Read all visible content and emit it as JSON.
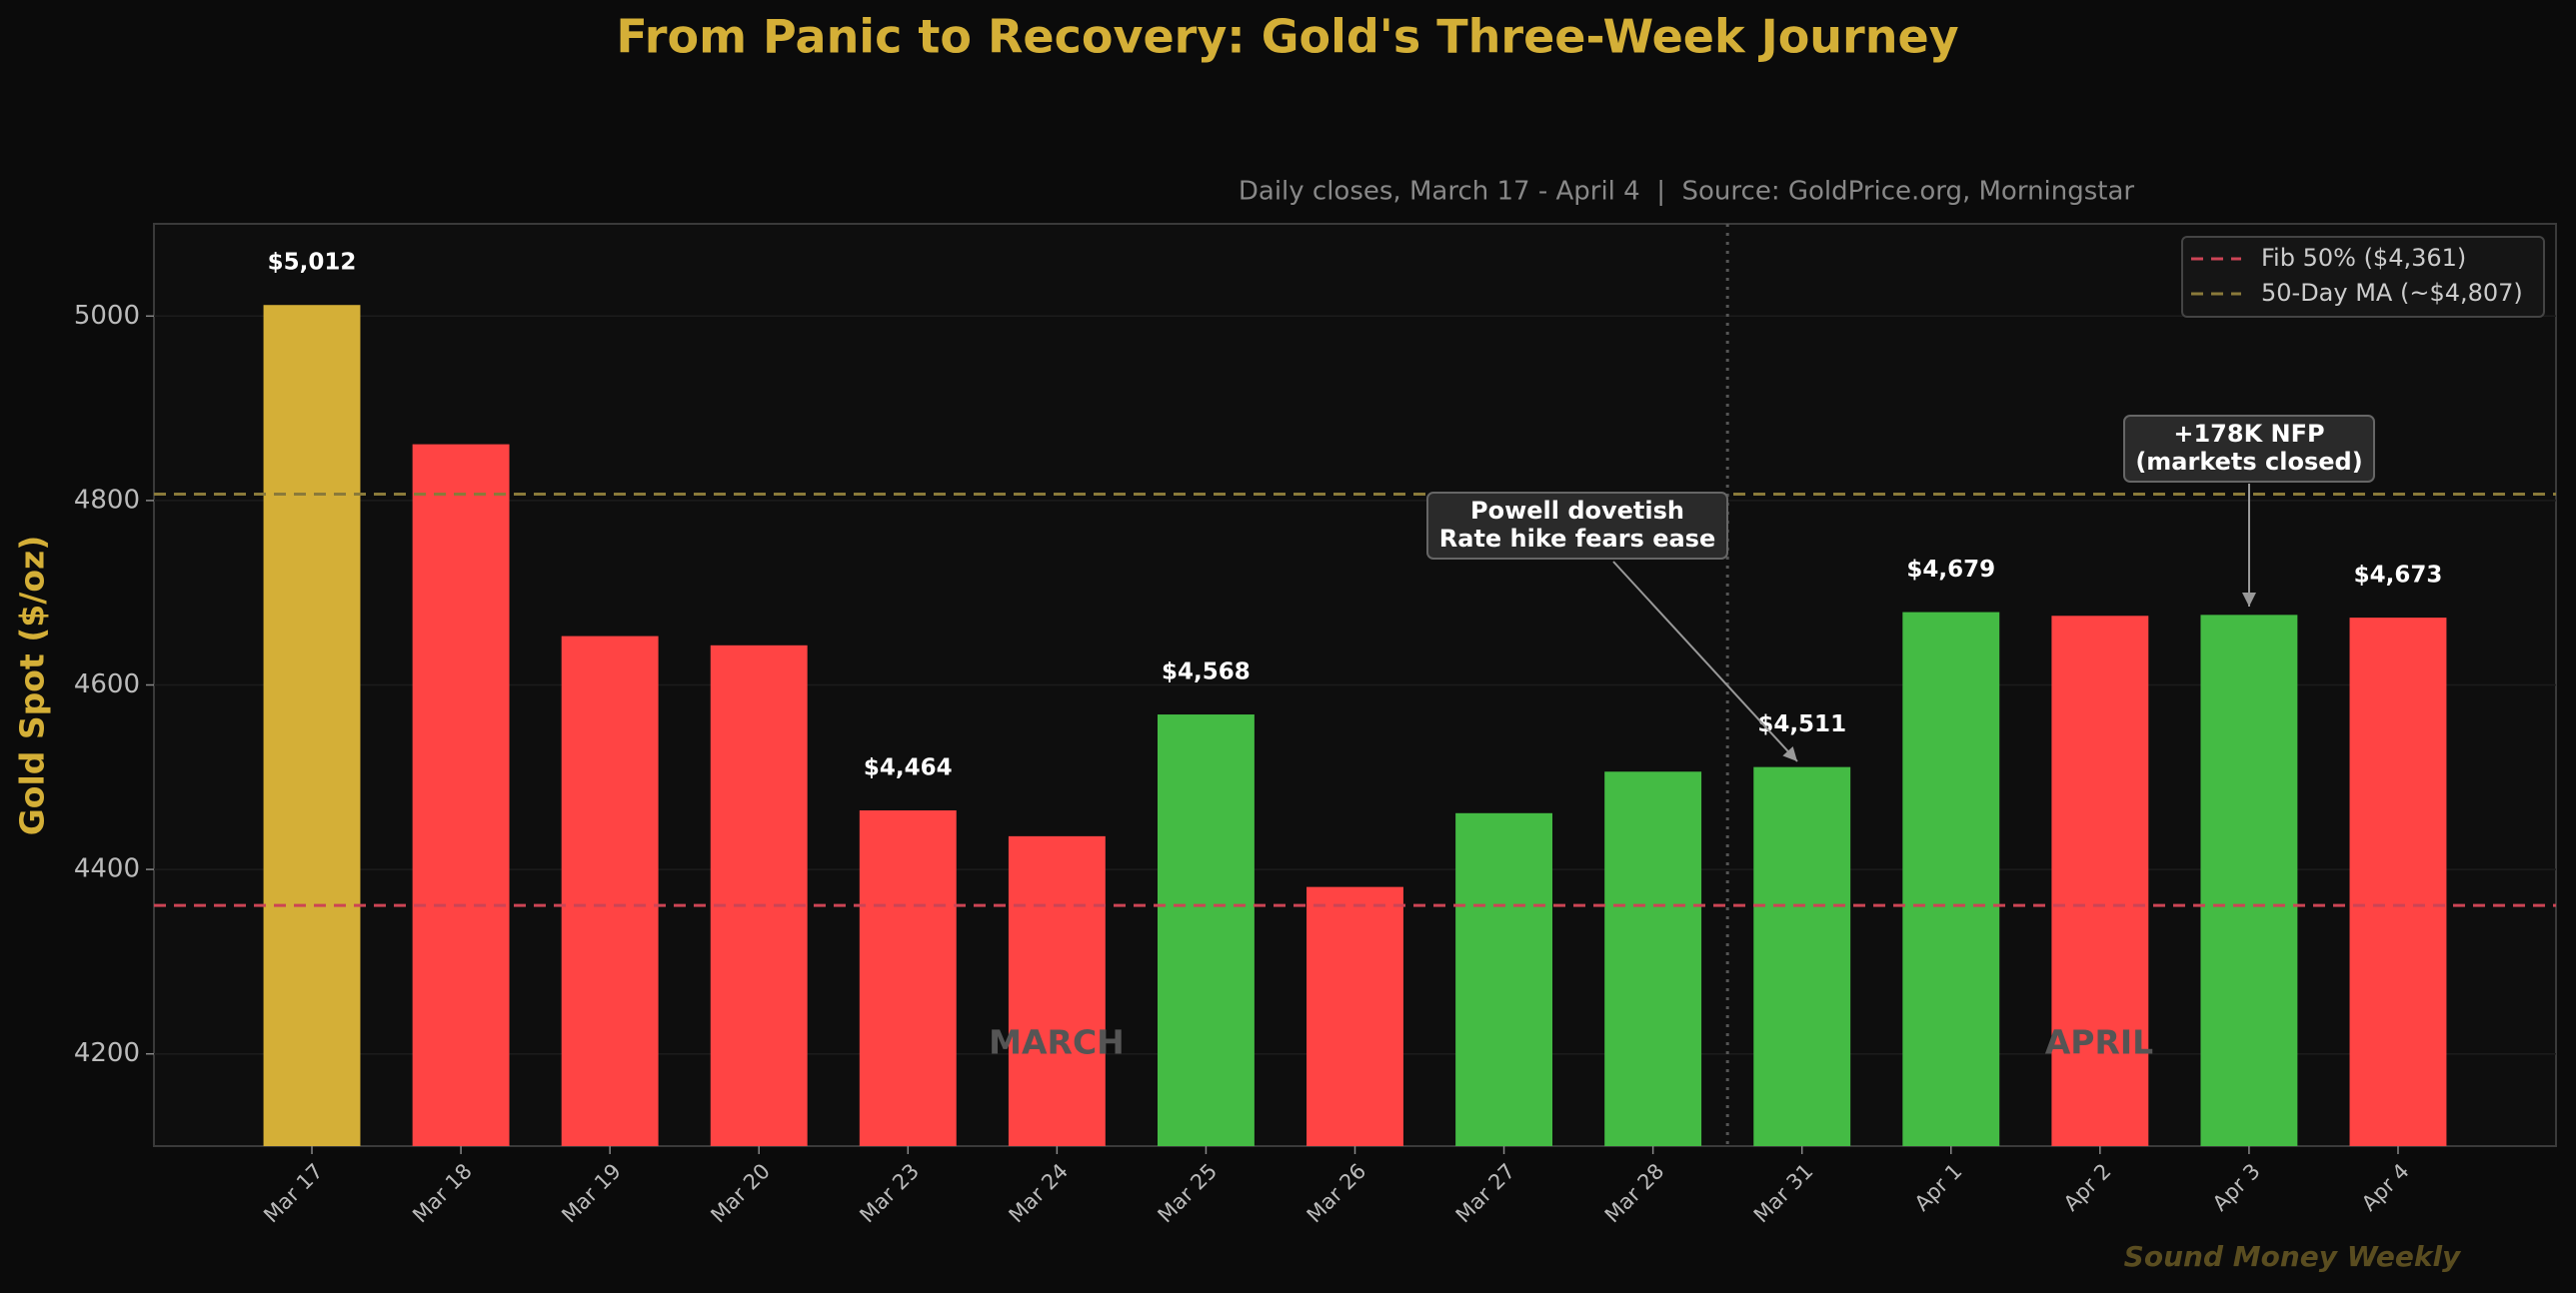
{
  "chart_data": {
    "type": "bar",
    "title": "From Panic to Recovery: Gold's Three-Week Journey",
    "subtitle": "Daily closes, March 17 - April 4  |  Source: GoldPrice.org, Morningstar",
    "ylabel": "Gold Spot ($/oz)",
    "categories": [
      "Mar 17",
      "Mar 18",
      "Mar 19",
      "Mar 20",
      "Mar 23",
      "Mar 24",
      "Mar 25",
      "Mar 26",
      "Mar 27",
      "Mar 28",
      "Mar 31",
      "Apr 1",
      "Apr 2",
      "Apr 3",
      "Apr 4"
    ],
    "values": [
      5012,
      4861,
      4653,
      4643,
      4464,
      4436,
      4568,
      4381,
      4461,
      4506,
      4511,
      4679,
      4675,
      4676,
      4673
    ],
    "value_labels": [
      "$5,012",
      null,
      null,
      null,
      "$4,464",
      null,
      "$4,568",
      null,
      null,
      null,
      "$4,511",
      "$4,679",
      null,
      null,
      "$4,673"
    ],
    "colors": [
      "#d4af37",
      "#ff4444",
      "#ff4444",
      "#ff4444",
      "#ff4444",
      "#ff4444",
      "#44bb44",
      "#ff4444",
      "#44bb44",
      "#44bb44",
      "#44bb44",
      "#44bb44",
      "#ff4444",
      "#44bb44",
      "#ff4444"
    ],
    "ylim": [
      4100,
      5100
    ],
    "yticks": [
      4200,
      4400,
      4600,
      4800,
      5000
    ],
    "grid": true,
    "legend_loc": "upper right",
    "reference_lines": [
      {
        "value": 4361,
        "label": "Fib 50% ($4,361)",
        "color": "#cc4455"
      },
      {
        "value": 4807,
        "label": "50-Day MA (~$4,807)",
        "color": "#8a7a3a"
      }
    ],
    "annotations": [
      {
        "text": [
          "Powell dovetish",
          "Rate hike fears ease"
        ]
      },
      {
        "text": [
          "+178K NFP",
          "(markets closed)"
        ]
      }
    ],
    "period_labels": [
      "MARCH",
      "APRIL"
    ],
    "footer": "Sound Money Weekly"
  }
}
